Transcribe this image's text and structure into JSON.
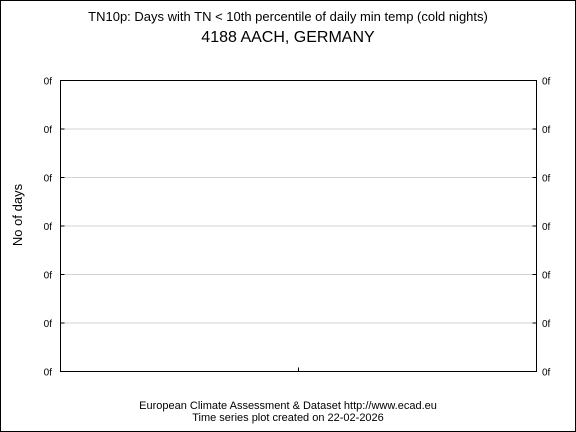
{
  "chart_data": {
    "type": "line",
    "title": "TN10p: Days with TN < 10th percentile of daily min temp (cold nights)",
    "subtitle": "4188 AACH, GERMANY",
    "xlabel": "",
    "ylabel": "No of days",
    "y_tick_labels": [
      "0f",
      "0f",
      "0f",
      "0f",
      "0f",
      "0f",
      "0f"
    ],
    "series": [],
    "grid": true,
    "legend": "none"
  },
  "footer": {
    "line1": "European Climate Assessment & Dataset  http://www.ecad.eu",
    "line2": "Time series plot created on 22-02-2026"
  },
  "colors": {
    "background": "#ffffff",
    "frame": "#000000",
    "grid": "#d3d3d3",
    "text": "#000000"
  }
}
